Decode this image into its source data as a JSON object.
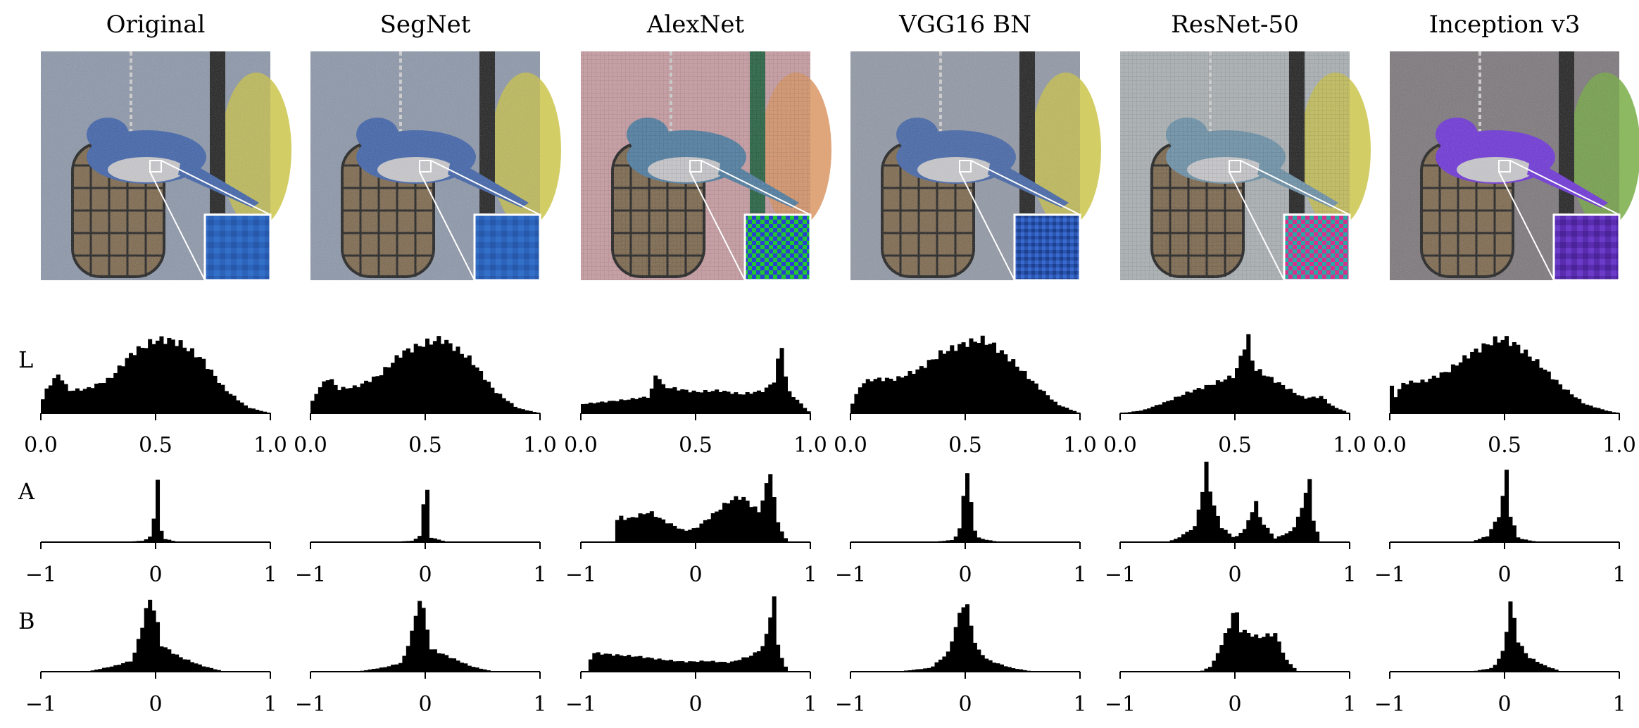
{
  "colors": {
    "bar": "#000000",
    "jay_blue": "#2f6fd0",
    "inception_purple": "#6a2fd8",
    "alexnet_green": "#22c830",
    "resnet_magenta": "#d8308a"
  },
  "chart_data": {
    "type": "histogram-grid",
    "columns": [
      {
        "title": "Original",
        "thumbnail": {
          "tint": "natural",
          "inset_pattern": "smooth-blue"
        }
      },
      {
        "title": "SegNet",
        "thumbnail": {
          "tint": "natural",
          "inset_pattern": "smooth-blue"
        }
      },
      {
        "title": "AlexNet",
        "thumbnail": {
          "tint": "pink-noise",
          "inset_pattern": "green-blue-checker"
        }
      },
      {
        "title": "VGG16 BN",
        "thumbnail": {
          "tint": "natural-muted",
          "inset_pattern": "blue-grid"
        }
      },
      {
        "title": "ResNet-50",
        "thumbnail": {
          "tint": "washed-grid",
          "inset_pattern": "magenta-teal-checker"
        }
      },
      {
        "title": "Inception v3",
        "thumbnail": {
          "tint": "purple",
          "inset_pattern": "smooth-purple"
        }
      }
    ],
    "rows": [
      {
        "label": "L",
        "xlim": [
          0,
          1
        ],
        "ticks": [
          0.0,
          0.5,
          1.0
        ],
        "tick_labels": [
          "0.0",
          "0.5",
          "1.0"
        ]
      },
      {
        "label": "A",
        "xlim": [
          -1,
          1
        ],
        "ticks": [
          -1,
          0,
          1
        ],
        "tick_labels": [
          "−1",
          "0",
          "1"
        ]
      },
      {
        "label": "B",
        "xlim": [
          -1,
          1
        ],
        "ticks": [
          -1,
          0,
          1
        ],
        "tick_labels": [
          "−1",
          "0",
          "1"
        ]
      }
    ],
    "histograms": [
      [
        [
          {
            "x": 0.0,
            "y": 0.12
          },
          {
            "x": 0.03,
            "y": 0.35
          },
          {
            "x": 0.08,
            "y": 0.52
          },
          {
            "x": 0.12,
            "y": 0.3
          },
          {
            "x": 0.2,
            "y": 0.32
          },
          {
            "x": 0.3,
            "y": 0.45
          },
          {
            "x": 0.4,
            "y": 0.8
          },
          {
            "x": 0.5,
            "y": 0.96
          },
          {
            "x": 0.55,
            "y": 0.97
          },
          {
            "x": 0.6,
            "y": 0.93
          },
          {
            "x": 0.7,
            "y": 0.72
          },
          {
            "x": 0.8,
            "y": 0.32
          },
          {
            "x": 0.9,
            "y": 0.08
          },
          {
            "x": 1.0,
            "y": 0.0
          }
        ],
        [
          {
            "x": -0.3,
            "y": 0.0
          },
          {
            "x": -0.1,
            "y": 0.02
          },
          {
            "x": -0.04,
            "y": 0.08
          },
          {
            "x": -0.01,
            "y": 0.4
          },
          {
            "x": 0.0,
            "y": 0.75
          },
          {
            "x": 0.01,
            "y": 1.0
          },
          {
            "x": 0.03,
            "y": 0.35
          },
          {
            "x": 0.06,
            "y": 0.05
          },
          {
            "x": 0.2,
            "y": 0.0
          }
        ],
        [
          {
            "x": -0.6,
            "y": 0.0
          },
          {
            "x": -0.35,
            "y": 0.08
          },
          {
            "x": -0.2,
            "y": 0.15
          },
          {
            "x": -0.1,
            "y": 0.7
          },
          {
            "x": -0.05,
            "y": 0.97
          },
          {
            "x": 0.0,
            "y": 0.75
          },
          {
            "x": 0.05,
            "y": 0.35
          },
          {
            "x": 0.2,
            "y": 0.2
          },
          {
            "x": 0.4,
            "y": 0.08
          },
          {
            "x": 0.6,
            "y": 0.0
          }
        ]
      ],
      [
        [
          {
            "x": 0.0,
            "y": 0.1
          },
          {
            "x": 0.03,
            "y": 0.3
          },
          {
            "x": 0.08,
            "y": 0.48
          },
          {
            "x": 0.12,
            "y": 0.32
          },
          {
            "x": 0.2,
            "y": 0.35
          },
          {
            "x": 0.3,
            "y": 0.5
          },
          {
            "x": 0.4,
            "y": 0.8
          },
          {
            "x": 0.5,
            "y": 0.92
          },
          {
            "x": 0.57,
            "y": 0.98
          },
          {
            "x": 0.62,
            "y": 0.88
          },
          {
            "x": 0.7,
            "y": 0.7
          },
          {
            "x": 0.8,
            "y": 0.3
          },
          {
            "x": 0.9,
            "y": 0.07
          },
          {
            "x": 1.0,
            "y": 0.0
          }
        ],
        [
          {
            "x": -0.3,
            "y": 0.0
          },
          {
            "x": -0.1,
            "y": 0.02
          },
          {
            "x": -0.04,
            "y": 0.1
          },
          {
            "x": -0.01,
            "y": 0.6
          },
          {
            "x": 0.0,
            "y": 1.0
          },
          {
            "x": 0.02,
            "y": 0.6
          },
          {
            "x": 0.05,
            "y": 0.06
          },
          {
            "x": 0.2,
            "y": 0.0
          }
        ],
        [
          {
            "x": -0.6,
            "y": 0.0
          },
          {
            "x": -0.35,
            "y": 0.06
          },
          {
            "x": -0.2,
            "y": 0.12
          },
          {
            "x": -0.1,
            "y": 0.6
          },
          {
            "x": -0.05,
            "y": 0.98
          },
          {
            "x": 0.0,
            "y": 0.7
          },
          {
            "x": 0.05,
            "y": 0.3
          },
          {
            "x": 0.2,
            "y": 0.2
          },
          {
            "x": 0.4,
            "y": 0.07
          },
          {
            "x": 0.6,
            "y": 0.0
          }
        ]
      ],
      [
        [
          {
            "x": 0.0,
            "y": 0.12
          },
          {
            "x": 0.1,
            "y": 0.15
          },
          {
            "x": 0.2,
            "y": 0.18
          },
          {
            "x": 0.3,
            "y": 0.22
          },
          {
            "x": 0.33,
            "y": 0.55
          },
          {
            "x": 0.36,
            "y": 0.35
          },
          {
            "x": 0.5,
            "y": 0.28
          },
          {
            "x": 0.6,
            "y": 0.3
          },
          {
            "x": 0.7,
            "y": 0.25
          },
          {
            "x": 0.8,
            "y": 0.3
          },
          {
            "x": 0.85,
            "y": 0.45
          },
          {
            "x": 0.87,
            "y": 1.0
          },
          {
            "x": 0.9,
            "y": 0.3
          },
          {
            "x": 1.0,
            "y": 0.0
          }
        ],
        [
          {
            "x": -0.7,
            "y": 0.0
          },
          {
            "x": -0.68,
            "y": 0.35
          },
          {
            "x": -0.6,
            "y": 0.3
          },
          {
            "x": -0.4,
            "y": 0.4
          },
          {
            "x": -0.3,
            "y": 0.3
          },
          {
            "x": -0.1,
            "y": 0.15
          },
          {
            "x": 0.0,
            "y": 0.18
          },
          {
            "x": 0.1,
            "y": 0.3
          },
          {
            "x": 0.3,
            "y": 0.55
          },
          {
            "x": 0.4,
            "y": 0.6
          },
          {
            "x": 0.55,
            "y": 0.4
          },
          {
            "x": 0.62,
            "y": 0.75
          },
          {
            "x": 0.66,
            "y": 1.0
          },
          {
            "x": 0.7,
            "y": 0.3
          },
          {
            "x": 0.8,
            "y": 0.0
          }
        ],
        [
          {
            "x": -0.95,
            "y": 0.0
          },
          {
            "x": -0.9,
            "y": 0.25
          },
          {
            "x": -0.7,
            "y": 0.22
          },
          {
            "x": -0.5,
            "y": 0.2
          },
          {
            "x": -0.3,
            "y": 0.16
          },
          {
            "x": -0.1,
            "y": 0.13
          },
          {
            "x": 0.1,
            "y": 0.14
          },
          {
            "x": 0.3,
            "y": 0.12
          },
          {
            "x": 0.5,
            "y": 0.22
          },
          {
            "x": 0.6,
            "y": 0.35
          },
          {
            "x": 0.68,
            "y": 1.0
          },
          {
            "x": 0.72,
            "y": 0.3
          },
          {
            "x": 0.8,
            "y": 0.0
          }
        ]
      ],
      [
        [
          {
            "x": 0.0,
            "y": 0.08
          },
          {
            "x": 0.05,
            "y": 0.4
          },
          {
            "x": 0.1,
            "y": 0.45
          },
          {
            "x": 0.2,
            "y": 0.45
          },
          {
            "x": 0.3,
            "y": 0.58
          },
          {
            "x": 0.4,
            "y": 0.8
          },
          {
            "x": 0.5,
            "y": 0.92
          },
          {
            "x": 0.57,
            "y": 0.97
          },
          {
            "x": 0.62,
            "y": 0.9
          },
          {
            "x": 0.7,
            "y": 0.7
          },
          {
            "x": 0.8,
            "y": 0.4
          },
          {
            "x": 0.9,
            "y": 0.12
          },
          {
            "x": 1.0,
            "y": 0.0
          }
        ],
        [
          {
            "x": -0.3,
            "y": 0.0
          },
          {
            "x": -0.1,
            "y": 0.03
          },
          {
            "x": -0.04,
            "y": 0.2
          },
          {
            "x": -0.01,
            "y": 0.75
          },
          {
            "x": 0.01,
            "y": 1.0
          },
          {
            "x": 0.04,
            "y": 0.65
          },
          {
            "x": 0.07,
            "y": 0.2
          },
          {
            "x": 0.12,
            "y": 0.05
          },
          {
            "x": 0.3,
            "y": 0.0
          }
        ],
        [
          {
            "x": -0.6,
            "y": 0.0
          },
          {
            "x": -0.3,
            "y": 0.05
          },
          {
            "x": -0.15,
            "y": 0.25
          },
          {
            "x": -0.08,
            "y": 0.6
          },
          {
            "x": 0.0,
            "y": 0.98
          },
          {
            "x": 0.05,
            "y": 0.6
          },
          {
            "x": 0.1,
            "y": 0.3
          },
          {
            "x": 0.2,
            "y": 0.15
          },
          {
            "x": 0.4,
            "y": 0.05
          },
          {
            "x": 0.6,
            "y": 0.0
          }
        ]
      ],
      [
        [
          {
            "x": 0.0,
            "y": 0.0
          },
          {
            "x": 0.1,
            "y": 0.04
          },
          {
            "x": 0.2,
            "y": 0.15
          },
          {
            "x": 0.3,
            "y": 0.28
          },
          {
            "x": 0.4,
            "y": 0.38
          },
          {
            "x": 0.5,
            "y": 0.5
          },
          {
            "x": 0.54,
            "y": 0.88
          },
          {
            "x": 0.56,
            "y": 1.0
          },
          {
            "x": 0.58,
            "y": 0.6
          },
          {
            "x": 0.7,
            "y": 0.38
          },
          {
            "x": 0.8,
            "y": 0.2
          },
          {
            "x": 0.88,
            "y": 0.22
          },
          {
            "x": 0.92,
            "y": 0.1
          },
          {
            "x": 1.0,
            "y": 0.0
          }
        ],
        [
          {
            "x": -0.6,
            "y": 0.0
          },
          {
            "x": -0.5,
            "y": 0.05
          },
          {
            "x": -0.35,
            "y": 0.2
          },
          {
            "x": -0.28,
            "y": 0.7
          },
          {
            "x": -0.25,
            "y": 1.0
          },
          {
            "x": -0.2,
            "y": 0.55
          },
          {
            "x": -0.12,
            "y": 0.2
          },
          {
            "x": 0.0,
            "y": 0.05
          },
          {
            "x": 0.1,
            "y": 0.2
          },
          {
            "x": 0.18,
            "y": 0.55
          },
          {
            "x": 0.22,
            "y": 0.3
          },
          {
            "x": 0.35,
            "y": 0.05
          },
          {
            "x": 0.5,
            "y": 0.15
          },
          {
            "x": 0.6,
            "y": 0.5
          },
          {
            "x": 0.64,
            "y": 0.95
          },
          {
            "x": 0.68,
            "y": 0.3
          },
          {
            "x": 0.75,
            "y": 0.0
          }
        ],
        [
          {
            "x": -0.3,
            "y": 0.0
          },
          {
            "x": -0.2,
            "y": 0.08
          },
          {
            "x": -0.12,
            "y": 0.35
          },
          {
            "x": -0.05,
            "y": 0.6
          },
          {
            "x": 0.0,
            "y": 0.85
          },
          {
            "x": 0.05,
            "y": 0.55
          },
          {
            "x": 0.2,
            "y": 0.45
          },
          {
            "x": 0.35,
            "y": 0.5
          },
          {
            "x": 0.45,
            "y": 0.15
          },
          {
            "x": 0.55,
            "y": 0.0
          }
        ]
      ],
      [
        [
          {
            "x": 0.0,
            "y": 0.45
          },
          {
            "x": 0.02,
            "y": 0.2
          },
          {
            "x": 0.06,
            "y": 0.4
          },
          {
            "x": 0.15,
            "y": 0.42
          },
          {
            "x": 0.25,
            "y": 0.55
          },
          {
            "x": 0.35,
            "y": 0.78
          },
          {
            "x": 0.45,
            "y": 0.95
          },
          {
            "x": 0.5,
            "y": 0.98
          },
          {
            "x": 0.55,
            "y": 0.9
          },
          {
            "x": 0.65,
            "y": 0.65
          },
          {
            "x": 0.75,
            "y": 0.35
          },
          {
            "x": 0.85,
            "y": 0.12
          },
          {
            "x": 0.95,
            "y": 0.03
          },
          {
            "x": 1.0,
            "y": 0.0
          }
        ],
        [
          {
            "x": -0.3,
            "y": 0.0
          },
          {
            "x": -0.15,
            "y": 0.08
          },
          {
            "x": -0.05,
            "y": 0.35
          },
          {
            "x": 0.0,
            "y": 0.7
          },
          {
            "x": 0.02,
            "y": 1.0
          },
          {
            "x": 0.05,
            "y": 0.35
          },
          {
            "x": 0.12,
            "y": 0.05
          },
          {
            "x": 0.3,
            "y": 0.0
          }
        ],
        [
          {
            "x": -0.3,
            "y": 0.0
          },
          {
            "x": -0.1,
            "y": 0.05
          },
          {
            "x": 0.0,
            "y": 0.3
          },
          {
            "x": 0.03,
            "y": 0.75
          },
          {
            "x": 0.06,
            "y": 1.0
          },
          {
            "x": 0.1,
            "y": 0.45
          },
          {
            "x": 0.2,
            "y": 0.2
          },
          {
            "x": 0.35,
            "y": 0.08
          },
          {
            "x": 0.5,
            "y": 0.0
          }
        ]
      ]
    ]
  }
}
